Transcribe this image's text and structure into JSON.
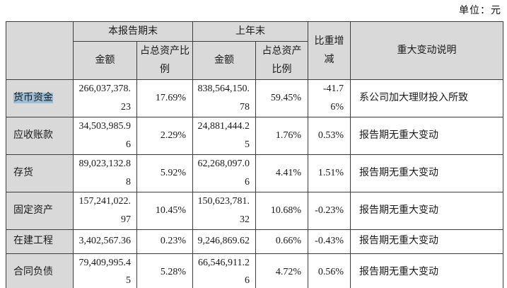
{
  "unit_label": "单位：元",
  "table": {
    "header": {
      "current_period": "本报告期末",
      "prior_period": "上年末",
      "amount": "金额",
      "pct_of_assets": "占总资产比例",
      "pct_change": "比重增减",
      "explanation": "重大变动说明"
    },
    "rows": [
      {
        "label": "货币资金",
        "highlighted": true,
        "cur_amount": "266,037,378.23",
        "cur_pct": "17.69%",
        "prior_amount": "838,564,150.78",
        "prior_pct": "59.45%",
        "change": "-41.76%",
        "note": "系公司加大理财投入所致"
      },
      {
        "label": "应收账款",
        "highlighted": false,
        "cur_amount": "34,503,985.96",
        "cur_pct": "2.29%",
        "prior_amount": "24,881,444.25",
        "prior_pct": "1.76%",
        "change": "0.53%",
        "note": "报告期无重大变动"
      },
      {
        "label": "存货",
        "highlighted": false,
        "cur_amount": "89,023,132.88",
        "cur_pct": "5.92%",
        "prior_amount": "62,268,097.06",
        "prior_pct": "4.41%",
        "change": "1.51%",
        "note": "报告期无重大变动"
      },
      {
        "label": "固定资产",
        "highlighted": false,
        "cur_amount": "157,241,022.97",
        "cur_pct": "10.45%",
        "prior_amount": "150,623,781.32",
        "prior_pct": "10.68%",
        "change": "-0.23%",
        "note": "报告期无重大变动"
      },
      {
        "label": "在建工程",
        "highlighted": false,
        "cur_amount": "3,402,567.36",
        "cur_pct": "0.23%",
        "prior_amount": "9,246,869.62",
        "prior_pct": "0.66%",
        "change": "-0.43%",
        "note": "报告期无重大变动"
      },
      {
        "label": "合同负债",
        "highlighted": false,
        "cur_amount": "79,409,995.45",
        "cur_pct": "5.28%",
        "prior_amount": "66,546,911.26",
        "prior_pct": "4.72%",
        "change": "0.56%",
        "note": "报告期无重大变动"
      }
    ],
    "colors": {
      "header_bg": "#d9d9d9",
      "label_bg": "#d9d9d9",
      "highlight": "#9fbdd2",
      "border": "#3c3c3c"
    }
  }
}
